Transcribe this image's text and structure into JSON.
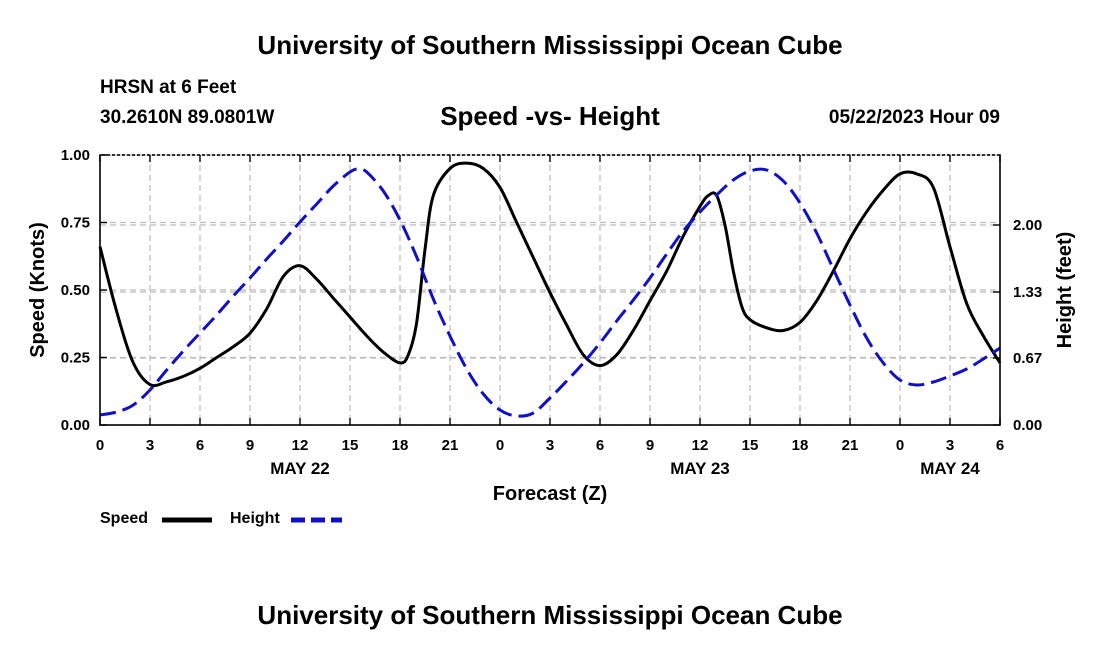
{
  "header": {
    "title": "University of Southern Mississippi Ocean Cube",
    "station": "HRSN at 6 Feet",
    "coords": "30.2610N  89.0801W",
    "subtitle": "Speed -vs- Height",
    "datetime": "05/22/2023 Hour 09",
    "footer_title": "University of Southern Mississippi Ocean Cube"
  },
  "colors": {
    "speed": "#000000",
    "height": "#1010c8",
    "grid": "#bbbbbb"
  },
  "chart_data": {
    "type": "line",
    "title": "Speed -vs- Height",
    "xlabel": "Forecast (Z)",
    "ylabel": "Speed (Knots)",
    "y2label": "Height (feet)",
    "xlim": [
      0,
      54
    ],
    "ylim": [
      0,
      1
    ],
    "y2lim": [
      0,
      2.7
    ],
    "xticks": [
      0,
      3,
      6,
      9,
      12,
      15,
      18,
      21,
      24,
      27,
      30,
      33,
      36,
      39,
      42,
      45,
      48,
      51,
      54
    ],
    "xtick_labels": [
      "0",
      "3",
      "6",
      "9",
      "12",
      "15",
      "18",
      "21",
      "0",
      "3",
      "6",
      "9",
      "12",
      "15",
      "18",
      "21",
      "0",
      "3",
      "6"
    ],
    "date_labels": [
      {
        "x": 12,
        "label": "MAY 22"
      },
      {
        "x": 36,
        "label": "MAY 23"
      },
      {
        "x": 51,
        "label": "MAY 24"
      }
    ],
    "yticks": [
      0,
      0.25,
      0.5,
      0.75,
      1.0
    ],
    "ytick_labels": [
      "0.00",
      "0.25",
      "0.50",
      "0.75",
      "1.00"
    ],
    "y2ticks": [
      0,
      0.67,
      1.33,
      2.0
    ],
    "y2tick_labels": [
      "0.00",
      "0.67",
      "1.33",
      "2.00"
    ],
    "grid": true,
    "series": [
      {
        "name": "Speed",
        "axis": "left",
        "style": "solid",
        "x": [
          0,
          1,
          2,
          3,
          4,
          5,
          6,
          7,
          8,
          9,
          10,
          11,
          12,
          13,
          14,
          15,
          16,
          17,
          18,
          18.5,
          19,
          19.5,
          20,
          21,
          22,
          23,
          24,
          25,
          26,
          27,
          28,
          29,
          30,
          31,
          32,
          33,
          34,
          35,
          36,
          36.5,
          37,
          37.5,
          38,
          38.5,
          39,
          40,
          41,
          42,
          43,
          44,
          45,
          46,
          47,
          48,
          49,
          50,
          51,
          52,
          53,
          54
        ],
        "values": [
          0.66,
          0.42,
          0.23,
          0.15,
          0.16,
          0.18,
          0.21,
          0.25,
          0.29,
          0.34,
          0.43,
          0.55,
          0.59,
          0.54,
          0.47,
          0.4,
          0.33,
          0.27,
          0.23,
          0.26,
          0.38,
          0.65,
          0.85,
          0.95,
          0.97,
          0.95,
          0.88,
          0.75,
          0.62,
          0.49,
          0.37,
          0.26,
          0.22,
          0.26,
          0.35,
          0.46,
          0.57,
          0.7,
          0.81,
          0.85,
          0.85,
          0.74,
          0.57,
          0.44,
          0.39,
          0.36,
          0.35,
          0.38,
          0.46,
          0.57,
          0.69,
          0.79,
          0.87,
          0.93,
          0.93,
          0.88,
          0.66,
          0.45,
          0.33,
          0.23
        ]
      },
      {
        "name": "Height",
        "axis": "right",
        "style": "dashed",
        "x": [
          0,
          1,
          2,
          3,
          4,
          5,
          6,
          7,
          8,
          9,
          10,
          11,
          12,
          13,
          14,
          15,
          15.5,
          16,
          17,
          18,
          19,
          20,
          21,
          22,
          23,
          24,
          25,
          26,
          27,
          28,
          29,
          30,
          31,
          32,
          33,
          34,
          35,
          36,
          37,
          38,
          39,
          40,
          41,
          42,
          43,
          44,
          45,
          46,
          47,
          48,
          49,
          50,
          51,
          52,
          53,
          54
        ],
        "values": [
          0.1,
          0.13,
          0.2,
          0.35,
          0.55,
          0.74,
          0.92,
          1.1,
          1.29,
          1.47,
          1.66,
          1.84,
          2.03,
          2.21,
          2.39,
          2.53,
          2.56,
          2.53,
          2.34,
          2.05,
          1.68,
          1.26,
          0.89,
          0.56,
          0.31,
          0.15,
          0.09,
          0.12,
          0.27,
          0.44,
          0.62,
          0.82,
          1.04,
          1.25,
          1.47,
          1.71,
          1.94,
          2.13,
          2.3,
          2.45,
          2.54,
          2.55,
          2.44,
          2.22,
          1.92,
          1.56,
          1.2,
          0.87,
          0.62,
          0.45,
          0.4,
          0.43,
          0.49,
          0.56,
          0.66,
          0.77
        ]
      }
    ],
    "legend": [
      "Speed",
      "Height"
    ],
    "legend_position": "bottom-left"
  }
}
